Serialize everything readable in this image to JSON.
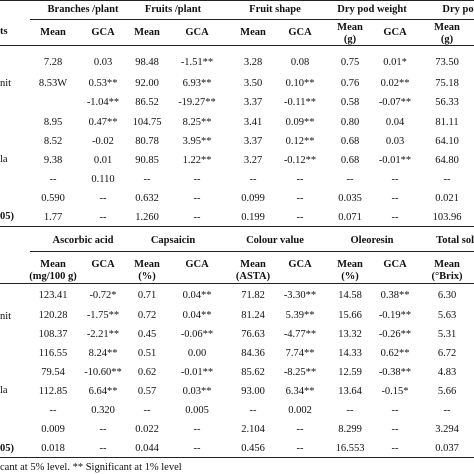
{
  "table1": {
    "row_labels": [
      "ts",
      "nit",
      "la",
      "05)"
    ],
    "groups": [
      "Branches /plant",
      "Fruits /plant",
      "Fruit shape",
      "Dry pod weight",
      "Dry po"
    ],
    "subheads": [
      "Mean",
      "GCA",
      "Mean",
      "GCA",
      "Mean",
      "GCA",
      "Mean\n(g)",
      "GCA",
      "Mean\n(g)"
    ],
    "rows": [
      [
        "7.28",
        "0.03",
        "98.48",
        "-1.51**",
        "3.28",
        "0.08",
        "0.75",
        "0.01*",
        "73.50"
      ],
      [
        "8.53W",
        "0.53**",
        "92.00",
        "6.93**",
        "3.50",
        "0.10**",
        "0.76",
        "0.02**",
        "75.18"
      ],
      [
        "",
        "-1.04**",
        "86.52",
        "-19.27**",
        "3.37",
        "-0.11**",
        "0.58",
        "-0.07**",
        "56.33"
      ],
      [
        "8.95",
        "0.47**",
        "104.75",
        "8.25**",
        "3.41",
        "0.09**",
        "0.80",
        "0.04",
        "81.11"
      ],
      [
        "8.52",
        "-0.02",
        "80.78",
        "3.95**",
        "3.37",
        "0.12**",
        "0.68",
        "0.03",
        "64.10"
      ],
      [
        "9.38",
        "0.01",
        "90.85",
        "1.22**",
        "3.27",
        "-0.12**",
        "0.68",
        "-0.01**",
        "64.80"
      ],
      [
        "--",
        "0.110",
        "--",
        "--",
        "--",
        "--",
        "--",
        "--",
        "--"
      ],
      [
        "0.590",
        "--",
        "0.632",
        "--",
        "0.099",
        "--",
        "0.035",
        "--",
        "0.021"
      ],
      [
        "1.77",
        "--",
        "1.260",
        "--",
        "0.199",
        "--",
        "0.071",
        "--",
        "103.96"
      ]
    ]
  },
  "table2": {
    "row_labels": [
      "nit",
      "la",
      "05)"
    ],
    "groups": [
      "Ascorbic acid",
      "Capsaicin",
      "Colour value",
      "Oleoresin",
      "Total solu"
    ],
    "subheads": [
      "Mean\n(mg/100 g)",
      "GCA",
      "Mean\n(%)",
      "GCA",
      "Mean\n(ASTA)",
      "GCA",
      "Mean\n(%)",
      "GCA",
      "Mean\n(°Brix)"
    ],
    "rows": [
      [
        "123.41",
        "-0.72*",
        "0.71",
        "0.04**",
        "71.82",
        "-3.30**",
        "14.58",
        "0.38**",
        "6.30"
      ],
      [
        "120.28",
        "-1.75**",
        "0.72",
        "0.04**",
        "81.24",
        "5.39**",
        "15.66",
        "-0.19**",
        "5.63"
      ],
      [
        "108.37",
        "-2.21**",
        "0.45",
        "-0.06**",
        "76.63",
        "-4.77**",
        "13.32",
        "-0.26**",
        "5.31"
      ],
      [
        "116.55",
        "8.24**",
        "0.51",
        "0.00",
        "84.36",
        "7.74**",
        "14.33",
        "0.62**",
        "6.72"
      ],
      [
        "79.54",
        "-10.60**",
        "0.62",
        "-0.01**",
        "85.62",
        "-8.25**",
        "12.59",
        "-0.38**",
        "4.83"
      ],
      [
        "112.85",
        "6.64**",
        "0.57",
        "0.03**",
        "93.00",
        "6.34**",
        "13.64",
        "-0.15*",
        "5.66"
      ],
      [
        "--",
        "0.320",
        "--",
        "0.005",
        "--",
        "0.002",
        "--",
        "--",
        "--"
      ],
      [
        "0.009",
        "--",
        "0.022",
        "--",
        "2.104",
        "--",
        "8.299",
        "--",
        "3.294"
      ],
      [
        "0.018",
        "--",
        "0.044",
        "--",
        "0.456",
        "--",
        "16.553",
        "--",
        "0.037"
      ]
    ]
  },
  "footnote": "cant at 5% level. ** Significant at 1% level"
}
